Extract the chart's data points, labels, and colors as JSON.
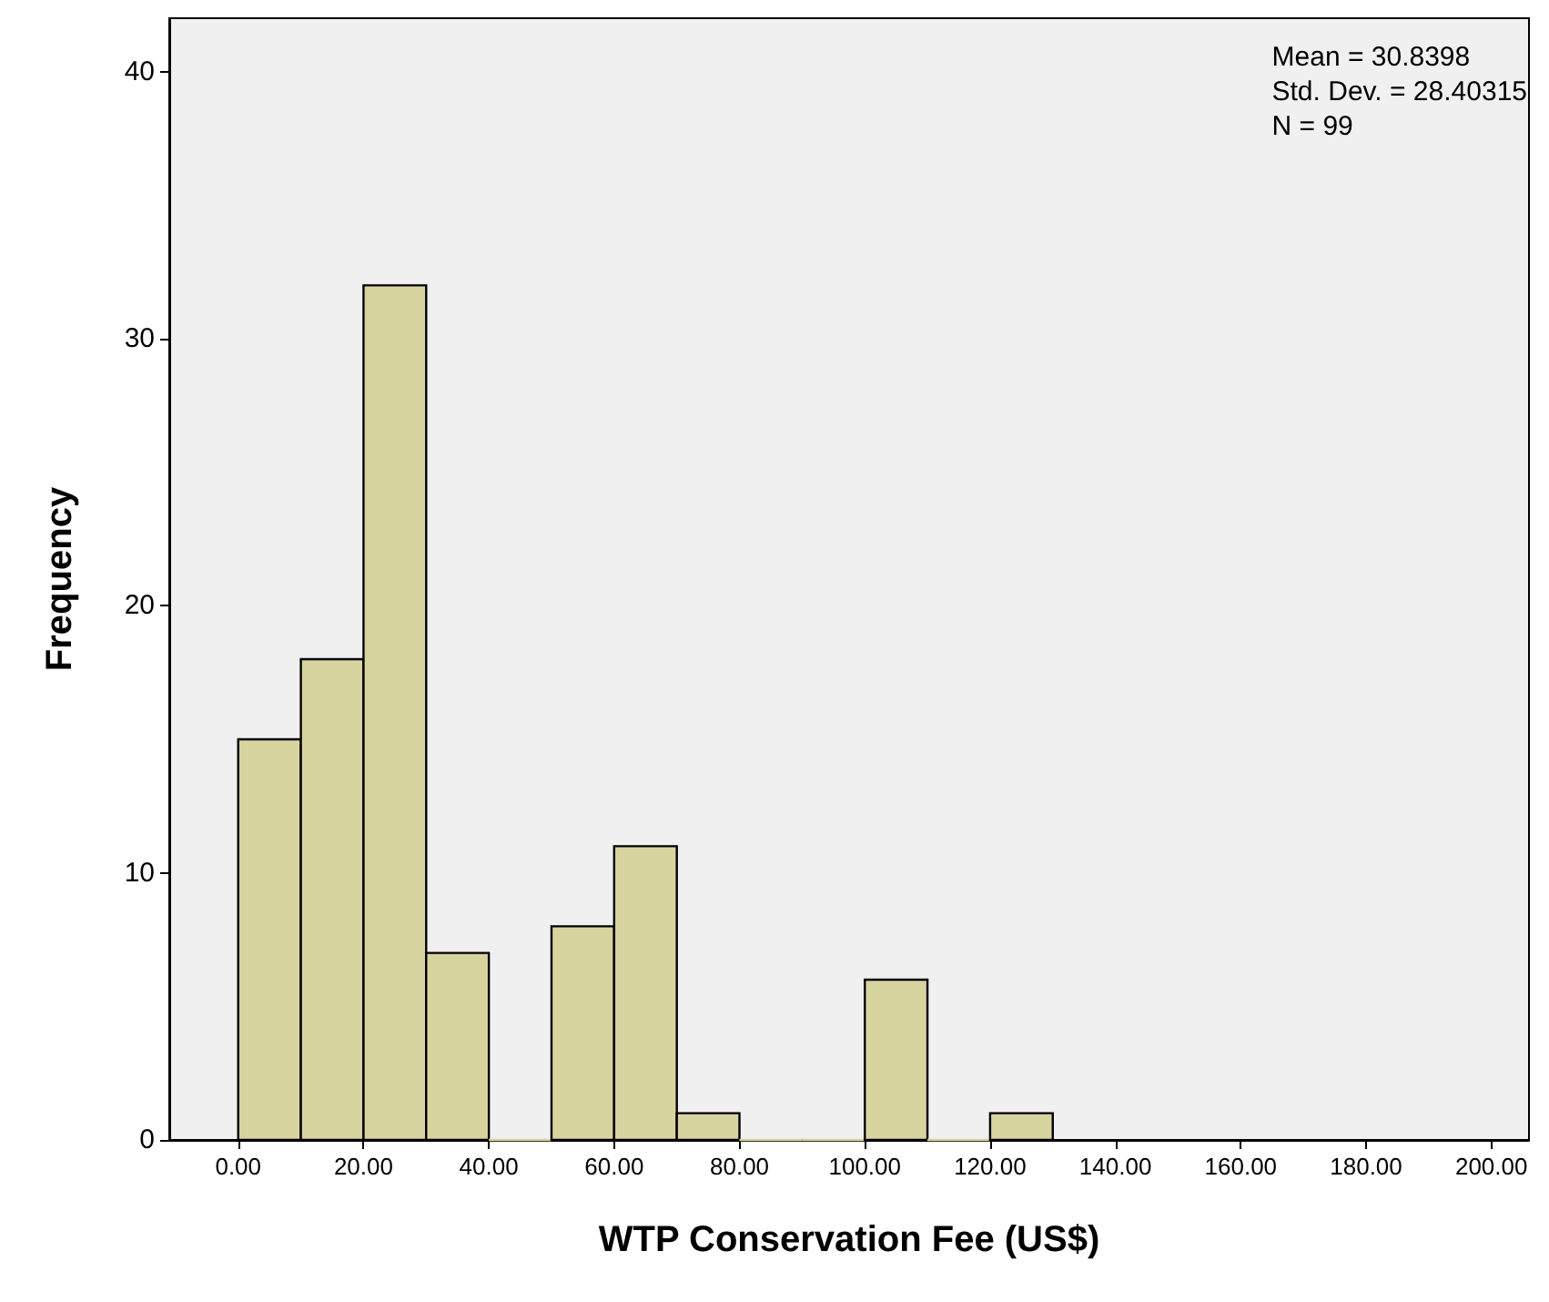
{
  "chart_data": {
    "type": "histogram",
    "xlabel": "WTP Conservation Fee (US$)",
    "ylabel": "Frequency",
    "bins": [
      0,
      10,
      20,
      30,
      40,
      50,
      60,
      70,
      80,
      90,
      100,
      110,
      120,
      130
    ],
    "values": [
      15,
      18,
      32,
      7,
      0,
      8,
      11,
      1,
      0,
      0,
      6,
      0,
      1
    ],
    "color": "#d8d4a0",
    "xlim": [
      -11,
      206
    ],
    "xticks": [
      {
        "value": 0,
        "label": "0.00"
      },
      {
        "value": 20,
        "label": "20.00"
      },
      {
        "value": 40,
        "label": "40.00"
      },
      {
        "value": 60,
        "label": "60.00"
      },
      {
        "value": 80,
        "label": "80.00"
      },
      {
        "value": 100,
        "label": "100.00"
      },
      {
        "value": 120,
        "label": "120.00"
      },
      {
        "value": 140,
        "label": "140.00"
      },
      {
        "value": 160,
        "label": "160.00"
      },
      {
        "value": 180,
        "label": "180.00"
      },
      {
        "value": 200,
        "label": "200.00"
      }
    ],
    "ylim": [
      0,
      42
    ],
    "yticks": [
      0,
      10,
      20,
      30,
      40
    ],
    "grid": false,
    "annotations": [
      "Mean = 30.8398",
      "Std. Dev. = 28.40315",
      "N = 99"
    ]
  }
}
